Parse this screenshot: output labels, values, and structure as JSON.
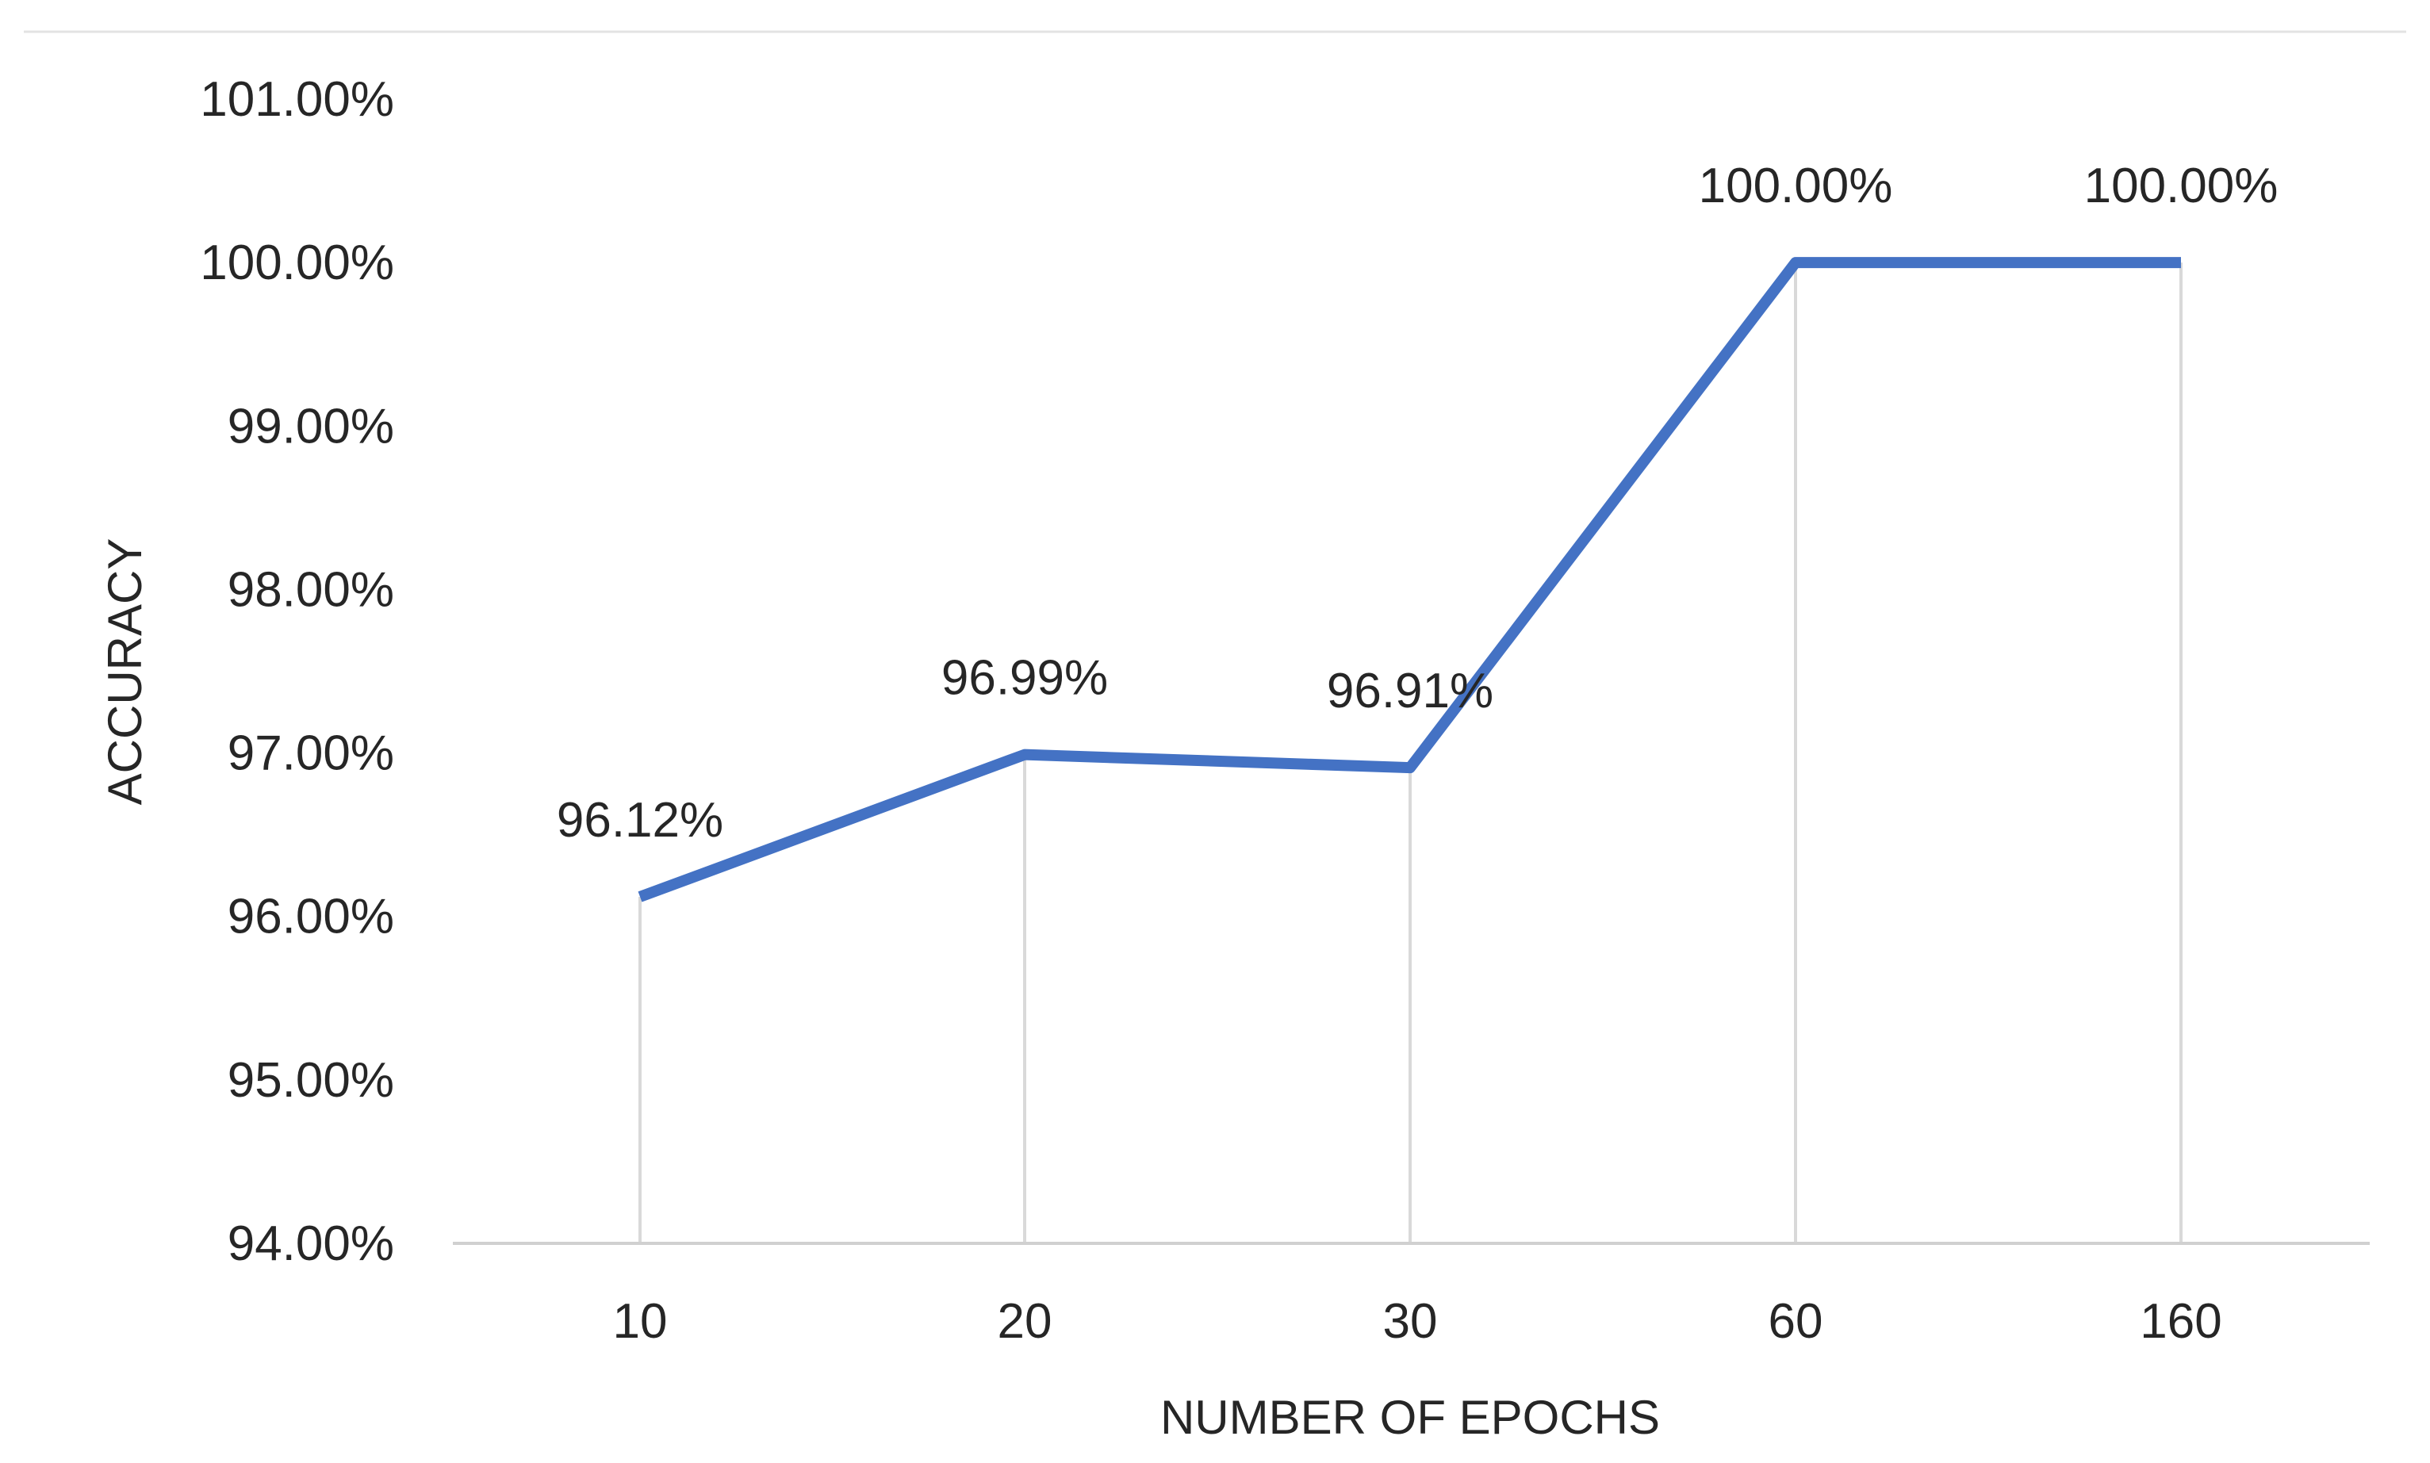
{
  "chart_data": {
    "type": "line",
    "title": "",
    "xlabel": "NUMBER OF EPOCHS",
    "ylabel": "ACCURACY",
    "categories": [
      "10",
      "20",
      "30",
      "60",
      "160"
    ],
    "series": [
      {
        "values": [
          96.12,
          96.99,
          96.91,
          100.0,
          100.0
        ],
        "color": "#4472c4"
      }
    ],
    "data_labels": [
      "96.12%",
      "96.99%",
      "96.91%",
      "100.00%",
      "100.00%"
    ],
    "ylim": [
      94,
      101
    ],
    "yticks": [
      94,
      95,
      96,
      97,
      98,
      99,
      100,
      101
    ],
    "ytick_labels": [
      "94.00%",
      "95.00%",
      "96.00%",
      "97.00%",
      "98.00%",
      "99.00%",
      "100.00%",
      "101.00%"
    ],
    "vertical_drop_lines": true,
    "horizontal_gridlines": false,
    "legend": "none"
  }
}
